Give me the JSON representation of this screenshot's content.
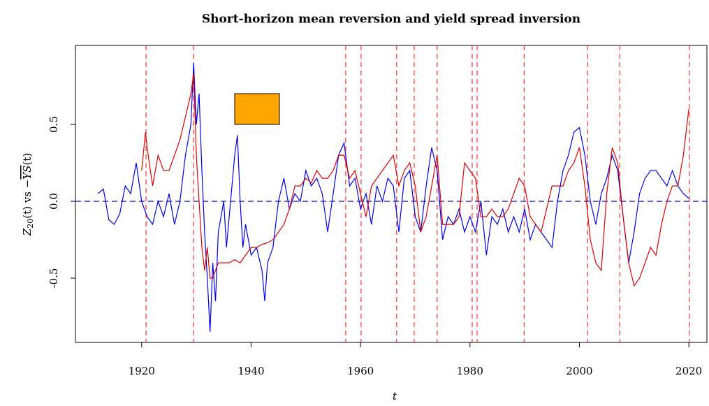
{
  "chart_data": {
    "type": "line",
    "title": "Short-horizon mean reversion and yield spread inversion",
    "xlabel": "t",
    "ylabel": {
      "main": "Z",
      "sub": "20",
      "rest": "(t) vs −",
      "hat": "YS",
      "tail": "(t)"
    },
    "xlim": [
      1907.9,
      2023.3
    ],
    "ylim": [
      -0.918,
      1.014
    ],
    "xticks": [
      1920,
      1940,
      1960,
      1980,
      2000,
      2020
    ],
    "yticks": [
      -0.5,
      {
        "value": 0,
        "label": "0.0"
      },
      0.5
    ],
    "hline": 0,
    "hline_color": "#0000cc",
    "vlines": [
      1920.8,
      1929.5,
      1957.3,
      1960.1,
      1966.6,
      1969.8,
      1974.0,
      1980.4,
      1981.3,
      1989.9,
      2001.5,
      2007.4,
      2020.1
    ],
    "vline_color": "#ee3333",
    "series": [
      {
        "name": "Z20",
        "color": "#0000ee",
        "x": [
          1912,
          1913,
          1914,
          1915,
          1916,
          1917,
          1918,
          1919,
          1920,
          1921,
          1922,
          1923,
          1924,
          1925,
          1926,
          1927,
          1928,
          1929,
          1929.5,
          1930,
          1930.5,
          1931,
          1931.5,
          1932,
          1932.5,
          1933,
          1933.5,
          1934,
          1935,
          1935.5,
          1936,
          1937,
          1937.5,
          1938,
          1938.5,
          1939,
          1940,
          1941,
          1942,
          1942.5,
          1943,
          1944,
          1945,
          1946,
          1947,
          1948,
          1949,
          1950,
          1951,
          1952,
          1953,
          1954,
          1955,
          1956,
          1957,
          1958,
          1959,
          1960,
          1961,
          1962,
          1963,
          1964,
          1965,
          1966,
          1967,
          1968,
          1969,
          1970,
          1971,
          1972,
          1973,
          1974,
          1975,
          1976,
          1977,
          1978,
          1979,
          1980,
          1981,
          1982,
          1983,
          1984,
          1985,
          1986,
          1987,
          1988,
          1989,
          1990,
          1991,
          1992,
          1993,
          1994,
          1995,
          1996,
          1997,
          1998,
          1999,
          2000,
          2001,
          2002,
          2003,
          2004,
          2005,
          2006,
          2007,
          2008,
          2009,
          2010,
          2011,
          2012,
          2013,
          2014,
          2015,
          2016,
          2017,
          2018,
          2019,
          2020
        ],
        "values": [
          0.05,
          0.08,
          -0.12,
          -0.15,
          -0.08,
          0.1,
          0.05,
          0.25,
          0.0,
          -0.1,
          -0.15,
          0.0,
          -0.1,
          0.05,
          -0.15,
          0.0,
          0.3,
          0.5,
          0.9,
          0.5,
          0.7,
          0.2,
          -0.2,
          -0.5,
          -0.85,
          -0.4,
          -0.65,
          -0.2,
          0.0,
          -0.3,
          -0.1,
          0.3,
          0.43,
          0.0,
          -0.3,
          -0.15,
          -0.35,
          -0.3,
          -0.45,
          -0.65,
          -0.4,
          -0.3,
          0.0,
          0.15,
          -0.05,
          0.05,
          0.0,
          0.2,
          0.1,
          0.15,
          0.05,
          -0.2,
          0.05,
          0.3,
          0.38,
          0.1,
          0.15,
          -0.05,
          0.05,
          -0.15,
          0.1,
          0.0,
          0.15,
          0.1,
          -0.2,
          0.15,
          0.2,
          -0.1,
          -0.2,
          0.1,
          0.35,
          0.2,
          -0.25,
          -0.1,
          -0.15,
          -0.05,
          -0.2,
          -0.1,
          -0.2,
          0.0,
          -0.35,
          -0.1,
          -0.15,
          -0.05,
          -0.2,
          -0.1,
          -0.2,
          -0.05,
          -0.25,
          -0.15,
          -0.2,
          -0.25,
          -0.3,
          0.0,
          0.2,
          0.3,
          0.45,
          0.48,
          0.3,
          0.0,
          -0.15,
          0.05,
          0.15,
          0.3,
          0.2,
          -0.1,
          -0.4,
          -0.2,
          0.05,
          0.15,
          0.2,
          0.2,
          0.15,
          0.1,
          0.2,
          0.1,
          0.05,
          0.02
        ]
      },
      {
        "name": "-YS",
        "color": "#dd0000",
        "x": [
          1920,
          1920.7,
          1921,
          1922,
          1923,
          1924,
          1925,
          1926,
          1927,
          1928,
          1929,
          1929.5,
          1930,
          1930.5,
          1931,
          1931.5,
          1932,
          1932.5,
          1933,
          1934,
          1935,
          1936,
          1937,
          1938,
          1939,
          1940,
          1941,
          1942,
          1943,
          1944,
          1945,
          1946,
          1947,
          1948,
          1949,
          1950,
          1951,
          1952,
          1953,
          1954,
          1955,
          1956,
          1957,
          1958,
          1959,
          1960,
          1961,
          1962,
          1963,
          1964,
          1965,
          1966,
          1967,
          1968,
          1969,
          1970,
          1971,
          1972,
          1973,
          1974,
          1975,
          1976,
          1977,
          1978,
          1979,
          1980,
          1981,
          1982,
          1983,
          1984,
          1985,
          1986,
          1987,
          1988,
          1989,
          1990,
          1991,
          1992,
          1993,
          1994,
          1995,
          1996,
          1997,
          1998,
          1999,
          2000,
          2001,
          2002,
          2003,
          2004,
          2005,
          2006,
          2007,
          2008,
          2009,
          2010,
          2011,
          2012,
          2013,
          2014,
          2015,
          2016,
          2017,
          2018,
          2019,
          2020
        ],
        "values": [
          0.2,
          0.45,
          0.35,
          0.1,
          0.3,
          0.2,
          0.2,
          0.3,
          0.4,
          0.55,
          0.7,
          0.83,
          0.3,
          0.0,
          -0.3,
          -0.45,
          -0.3,
          -0.5,
          -0.5,
          -0.4,
          -0.4,
          -0.4,
          -0.38,
          -0.4,
          -0.35,
          -0.3,
          -0.3,
          -0.28,
          -0.27,
          -0.25,
          -0.2,
          -0.15,
          -0.05,
          0.1,
          0.1,
          0.15,
          0.12,
          0.2,
          0.15,
          0.15,
          0.2,
          0.3,
          0.3,
          0.15,
          0.2,
          0.05,
          -0.1,
          0.1,
          0.15,
          0.2,
          0.25,
          0.3,
          0.1,
          0.2,
          0.25,
          0.1,
          -0.2,
          -0.1,
          0.1,
          0.3,
          -0.15,
          -0.15,
          -0.15,
          -0.1,
          0.25,
          0.2,
          0.15,
          -0.1,
          -0.1,
          -0.05,
          -0.1,
          -0.1,
          -0.05,
          0.05,
          0.15,
          0.1,
          -0.1,
          -0.15,
          -0.2,
          -0.05,
          0.1,
          0.1,
          0.1,
          0.2,
          0.25,
          0.35,
          0.1,
          -0.25,
          -0.4,
          -0.45,
          0.05,
          0.35,
          0.25,
          -0.1,
          -0.4,
          -0.55,
          -0.5,
          -0.4,
          -0.3,
          -0.35,
          -0.15,
          0.0,
          0.1,
          0.1,
          0.3,
          0.6
        ]
      }
    ]
  }
}
